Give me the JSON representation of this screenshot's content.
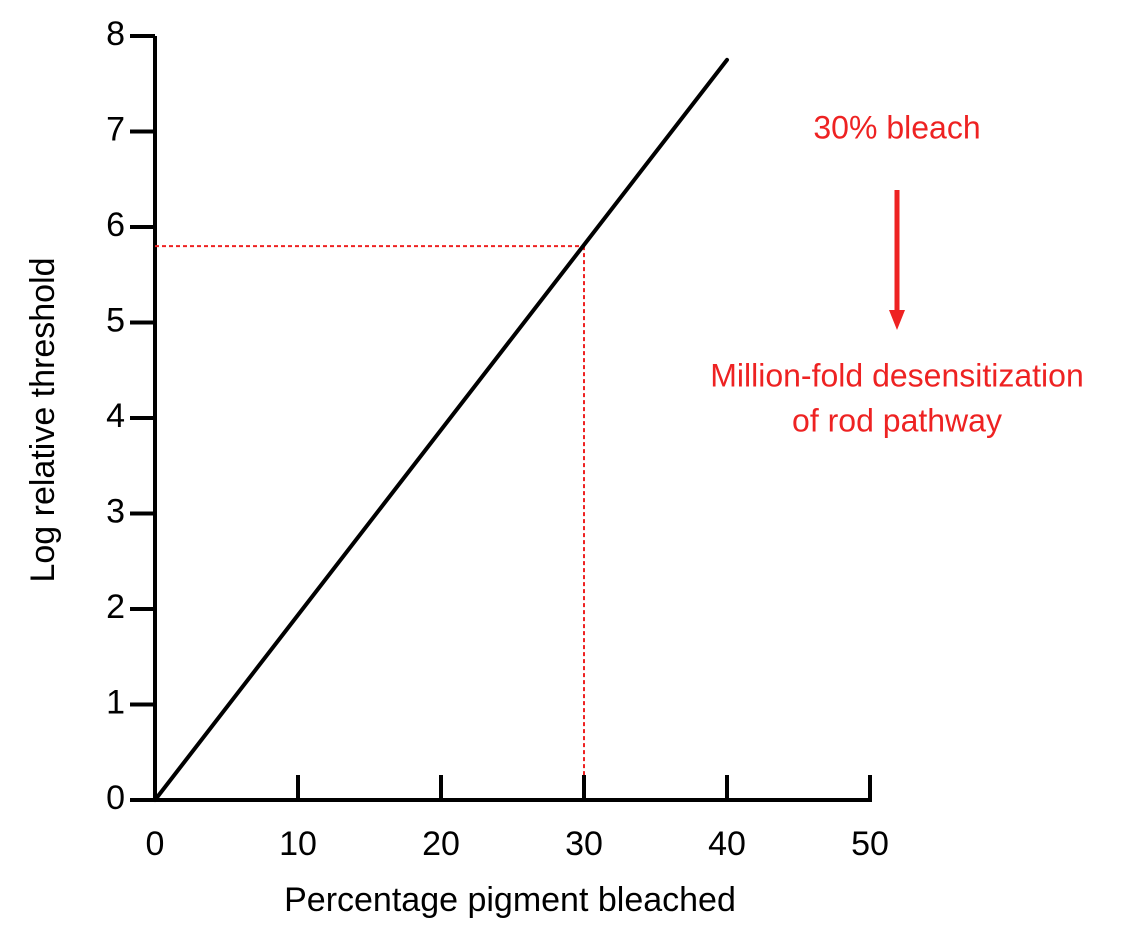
{
  "chart_data": {
    "type": "line",
    "x_label": "Percentage pigment bleached",
    "y_label": "Log relative threshold",
    "x": [
      0,
      40
    ],
    "series": [
      {
        "values": [
          0,
          7.75
        ],
        "color": "#000000"
      }
    ],
    "reference": {
      "x": 30,
      "y": 5.8,
      "color": "#ee2222"
    },
    "annotations": [
      "30% bleach",
      "Million-fold desensitization",
      "of rod pathway"
    ],
    "xlim": [
      0,
      50
    ],
    "xticks": [
      0,
      10,
      20,
      30,
      40,
      50
    ],
    "ylim": [
      0,
      8
    ],
    "yticks": [
      0,
      1,
      2,
      3,
      4,
      5,
      6,
      7,
      8
    ]
  }
}
